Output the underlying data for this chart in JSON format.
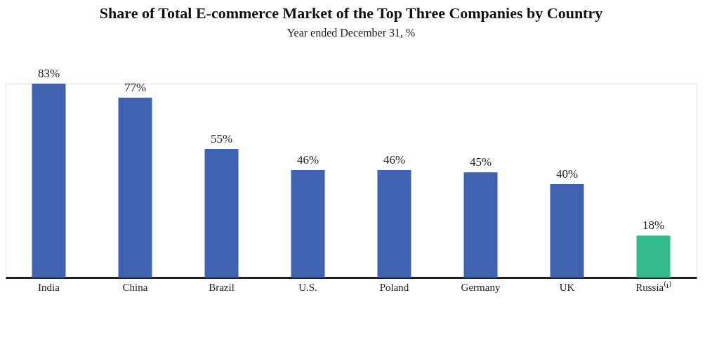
{
  "chart_data": {
    "type": "bar",
    "title": "Share of Total E-commerce Market of the Top Three Companies by Country",
    "subtitle": "Year ended December 31, %",
    "categories": [
      "India",
      "China",
      "Brazil",
      "U.S.",
      "Poland",
      "Germany",
      "UK",
      "Russia⁽¹⁾"
    ],
    "values": [
      83,
      77,
      55,
      46,
      46,
      45,
      40,
      18
    ],
    "colors": [
      "#3f63b0",
      "#3f63b0",
      "#3f63b0",
      "#3f63b0",
      "#3f63b0",
      "#3f63b0",
      "#3f63b0",
      "#33bb8f"
    ],
    "value_labels": [
      "83%",
      "77%",
      "55%",
      "46%",
      "46%",
      "45%",
      "40%",
      "18%"
    ],
    "grid": false,
    "legend": false
  }
}
